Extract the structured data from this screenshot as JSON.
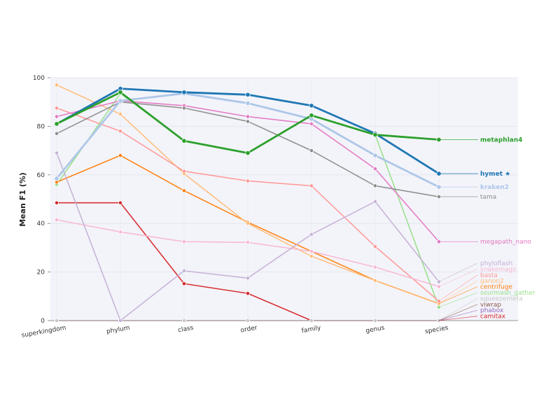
{
  "chart_data": {
    "type": "line",
    "ylabel": "Mean F1 (%)",
    "xlabel": "",
    "ylim": [
      0,
      100
    ],
    "yticks": [
      "0",
      "20",
      "40",
      "60",
      "80",
      "100"
    ],
    "categories": [
      "superkingdom",
      "phylum",
      "class",
      "order",
      "family",
      "genus",
      "species"
    ],
    "series": [
      {
        "name": "camitax",
        "color": "#d62728",
        "bold": false,
        "values": [
          48.5,
          48.5,
          15.2,
          11.2,
          0,
          0,
          0
        ]
      },
      {
        "name": "phabox",
        "color": "#9467bd",
        "bold": false,
        "values": [
          0,
          0,
          0,
          0,
          0,
          0,
          0
        ]
      },
      {
        "name": "viwrap",
        "color": "#8c564b",
        "bold": false,
        "values": [
          0,
          0,
          0,
          0,
          0,
          0,
          0
        ]
      },
      {
        "name": "squeezemeta",
        "color": "#c7c7c7",
        "bold": false,
        "values": [
          0,
          0,
          0,
          0,
          0,
          0,
          0
        ]
      },
      {
        "name": "sourmash_gather",
        "color": "#98df8a",
        "bold": false,
        "values": [
          56,
          93.5,
          74,
          69,
          84.5,
          76.5,
          5.5
        ]
      },
      {
        "name": "centrifuge",
        "color": "#ff7f0e",
        "bold": false,
        "values": [
          57,
          68,
          53.5,
          40.5,
          28.5,
          16.5,
          7
        ]
      },
      {
        "name": "ganon2",
        "color": "#ffbb78",
        "bold": false,
        "values": [
          97,
          85,
          60.5,
          40,
          26.5,
          16.5,
          7
        ]
      },
      {
        "name": "basta",
        "color": "#ff9896",
        "bold": false,
        "values": [
          87.5,
          78,
          61.5,
          57.5,
          55.5,
          30.5,
          8
        ]
      },
      {
        "name": "snakemags",
        "color": "#f7b6d2",
        "bold": false,
        "values": [
          41.5,
          36.5,
          32.5,
          32.2,
          28.5,
          22,
          14
        ]
      },
      {
        "name": "phyloflash",
        "color": "#c5b0d5",
        "bold": false,
        "values": [
          69,
          0,
          20.5,
          17.5,
          35.5,
          49,
          16
        ]
      },
      {
        "name": "megapath_nano",
        "color": "#e377c2",
        "bold": false,
        "values": [
          84,
          90.5,
          88.5,
          84,
          81,
          62.5,
          32.5
        ]
      },
      {
        "name": "tama",
        "color": "#8c8c8c",
        "bold": false,
        "values": [
          77,
          90,
          87.5,
          82,
          70,
          55.5,
          51
        ]
      },
      {
        "name": "kraken2",
        "color": "#aec7e8",
        "bold": true,
        "values": [
          58.5,
          90.5,
          93.5,
          89.5,
          83,
          68,
          55
        ]
      },
      {
        "name": "hymet ★",
        "color": "#1f77b4",
        "bold": true,
        "values": [
          81,
          95.5,
          94,
          93,
          88.5,
          77,
          60.5
        ]
      },
      {
        "name": "metaphlan4",
        "color": "#2ca02c",
        "bold": true,
        "values": [
          81,
          94,
          74,
          69,
          84.5,
          76.5,
          74.5
        ]
      }
    ],
    "end_labels": {
      "top_group": [
        "metaphlan4",
        "hymet ★",
        "kraken2",
        "tama",
        "megapath_nano"
      ],
      "bottom_group": [
        "phyloflash",
        "snakemags",
        "basta",
        "ganon2",
        "centrifuge",
        "sourmash_gather",
        "squeezemeta",
        "viwrap",
        "phabox",
        "camitax"
      ]
    }
  }
}
